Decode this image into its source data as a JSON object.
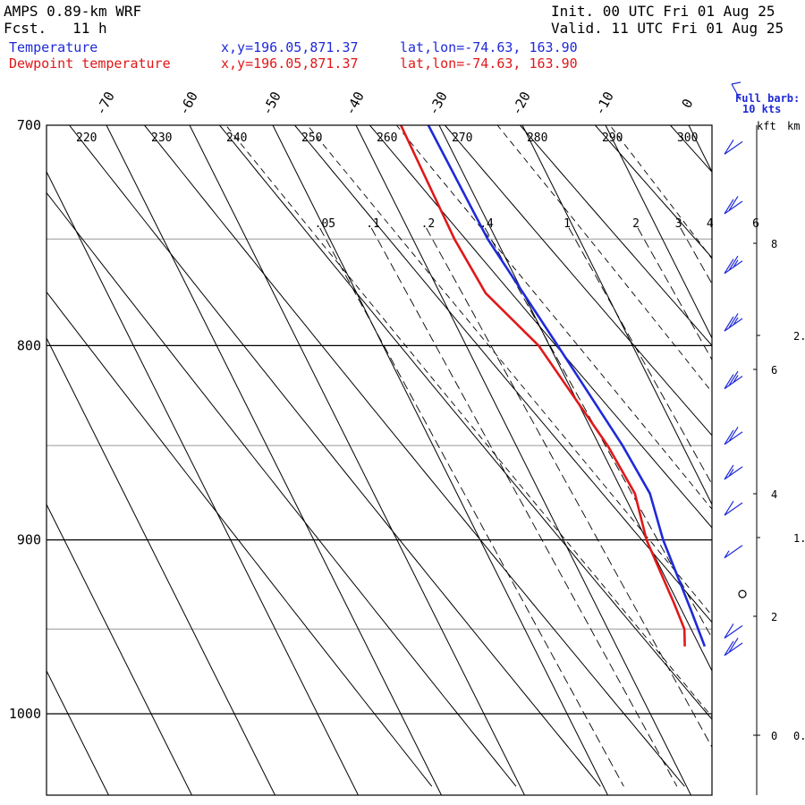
{
  "header": {
    "left_line1": "AMPS 0.89-km WRF",
    "left_line2": "Fcst.   11 h",
    "right_line1": "Init. 00 UTC Fri 01 Aug 25",
    "right_line2": "Valid. 11 UTC Fri 01 Aug 25",
    "temp_label": "Temperature",
    "dew_label": "Dewpoint temperature",
    "temp_xy": "x,y=196.05,871.37",
    "dew_xy": "x,y=196.05,871.37",
    "temp_latlon": "lat,lon=-74.63, 163.90",
    "dew_latlon": "lat,lon=-74.63, 163.90"
  },
  "legend": {
    "barb_line1": "Full barb:",
    "barb_line2": "10 kts",
    "kft_label": "kft",
    "km_label": "km"
  },
  "colors": {
    "temperature": "#1f2ad8",
    "dewpoint": "#e01818",
    "wind_barb": "#1f2ad8",
    "axes": "#000000",
    "minor_isobar": "#b4b4b4"
  },
  "chart_data": {
    "type": "line",
    "title": "",
    "plot_style": "skew-T log-p sounding",
    "y_axis": {
      "quantity": "pressure (hPa)",
      "scale": "log",
      "range": [
        1040,
        700
      ],
      "tick_labels": [
        "700",
        "800",
        "900",
        "1000"
      ]
    },
    "x_axis": {
      "quantity": "temperature (°C), skewed",
      "tick_labels": [
        "-70",
        "-60",
        "-50",
        "-40",
        "-30",
        "-20",
        "-10",
        "0"
      ]
    },
    "theta_labels": [
      "220",
      "230",
      "240",
      "250",
      "260",
      "270",
      "280",
      "290",
      "300"
    ],
    "mixing_ratio_labels": [
      ".05",
      ".1",
      ".2",
      ".4",
      "1",
      "2",
      "3",
      "4",
      "6"
    ],
    "kft_labels": [
      "8",
      "6",
      "4",
      "2",
      "0"
    ],
    "km_labels": [
      "2.",
      "1.",
      "0."
    ],
    "series": [
      {
        "name": "Temperature",
        "points": [
          [
            700,
            -31.3
          ],
          [
            750,
            -31.0
          ],
          [
            800,
            -29.0
          ],
          [
            850,
            -27.2
          ],
          [
            875,
            -26.8
          ],
          [
            900,
            -28.0
          ],
          [
            940,
            -28.9
          ],
          [
            960,
            -29.4
          ]
        ]
      },
      {
        "name": "Dewpoint temperature",
        "points": [
          [
            700,
            -34.6
          ],
          [
            750,
            -35.0
          ],
          [
            775,
            -34.5
          ],
          [
            800,
            -31.3
          ],
          [
            850,
            -29.0
          ],
          [
            875,
            -28.6
          ],
          [
            900,
            -30.0
          ],
          [
            935,
            -30.5
          ],
          [
            950,
            -30.8
          ],
          [
            960,
            -31.8
          ]
        ]
      }
    ],
    "wind_barbs": [
      {
        "p": 707,
        "speed_kt": 10
      },
      {
        "p": 733,
        "speed_kt": 20
      },
      {
        "p": 760,
        "speed_kt": 25
      },
      {
        "p": 787,
        "speed_kt": 25
      },
      {
        "p": 815,
        "speed_kt": 25
      },
      {
        "p": 843,
        "speed_kt": 20
      },
      {
        "p": 861,
        "speed_kt": 15
      },
      {
        "p": 880,
        "speed_kt": 10
      },
      {
        "p": 903,
        "speed_kt": 5
      },
      {
        "p": 930,
        "speed_kt": 0
      },
      {
        "p": 948,
        "speed_kt": 10
      },
      {
        "p": 958,
        "speed_kt": 20
      }
    ]
  }
}
